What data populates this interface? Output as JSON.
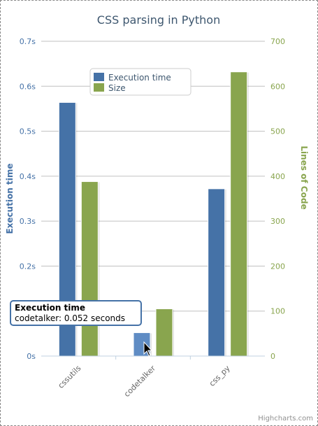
{
  "chart_data": {
    "type": "bar",
    "title": "CSS parsing in Python",
    "categories": [
      "cssutils",
      "codetalker",
      "css_py"
    ],
    "y_left": {
      "label": "Execution time",
      "ylim": [
        0,
        0.7
      ],
      "ticks": [
        "0s",
        "0.1s",
        "0.2s",
        "0.3s",
        "0.4s",
        "0.5s",
        "0.6s",
        "0.7s"
      ],
      "tick_values": [
        0,
        0.1,
        0.2,
        0.3,
        0.4,
        0.5,
        0.6,
        0.7
      ],
      "color": "#4572a7"
    },
    "y_right": {
      "label": "Lines of Code",
      "ylim": [
        0,
        700
      ],
      "ticks": [
        "0",
        "100",
        "200",
        "300",
        "400",
        "500",
        "600",
        "700"
      ],
      "tick_values": [
        0,
        100,
        200,
        300,
        400,
        500,
        600,
        700
      ],
      "color": "#89a54e"
    },
    "series": [
      {
        "name": "Execution time",
        "axis": "left",
        "color": "#4572a7",
        "values": [
          0.564,
          0.052,
          0.372
        ]
      },
      {
        "name": "Size",
        "axis": "right",
        "color": "#89a54e",
        "values": [
          388,
          105,
          632
        ]
      }
    ],
    "legend": {
      "placement": "top-inside",
      "items": [
        "Execution time",
        "Size"
      ]
    },
    "grid": true
  },
  "tooltip": {
    "title": "Execution time",
    "text": "codetalker: 0.052 seconds",
    "series_index": 0,
    "category_index": 1
  },
  "credit": "Highcharts.com"
}
